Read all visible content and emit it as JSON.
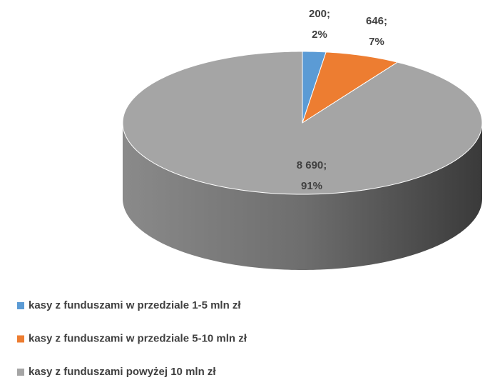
{
  "chart_data": {
    "type": "pie3d",
    "categories": [
      "kasy z funduszami w przedziale 1-5 mln zł",
      "kasy z funduszami w przedziale 5-10 mln zł",
      "kasy z funduszami powyżej 10 mln zł"
    ],
    "values": [
      200,
      646,
      8690
    ],
    "value_labels": [
      "200;",
      "646;",
      "8 690;"
    ],
    "percents": [
      2,
      7,
      91
    ],
    "percent_labels": [
      "2%",
      "7%",
      "91%"
    ],
    "colors": [
      "#5b9bd5",
      "#ed7d31",
      "#a5a5a5"
    ],
    "legend": "bottom-left"
  }
}
